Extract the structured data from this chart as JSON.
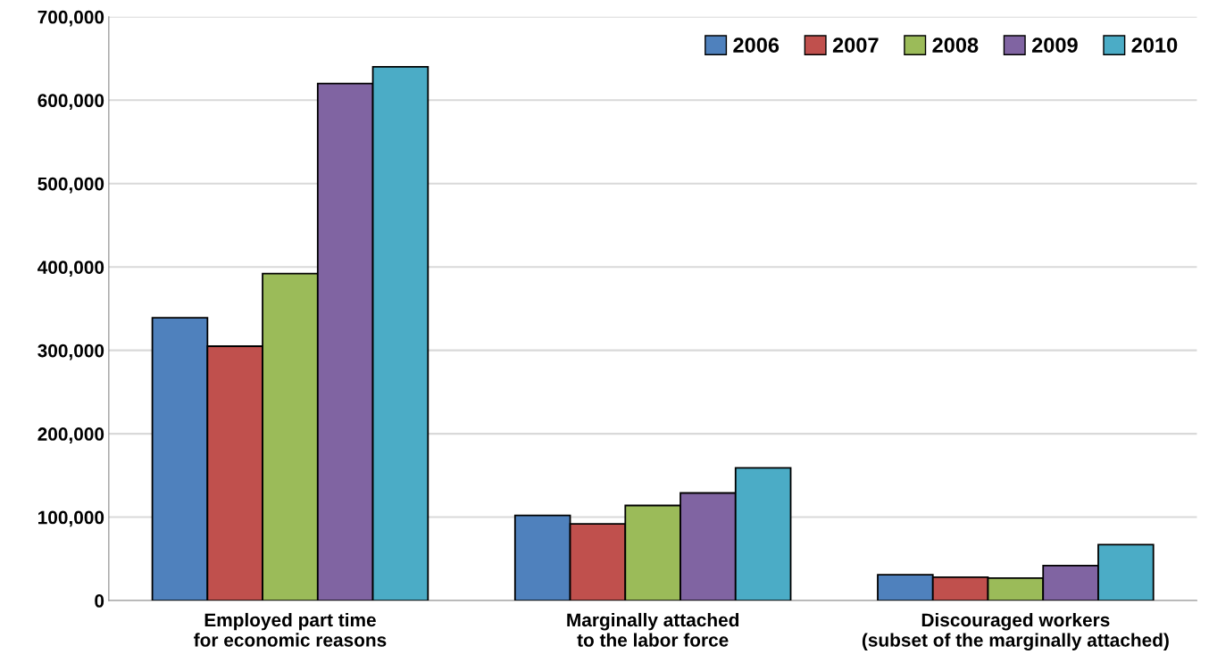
{
  "chart_data": {
    "type": "bar",
    "categories": [
      "Employed part time\nfor economic reasons",
      "Marginally attached\nto the labor force",
      "Discouraged workers\n(subset of the marginally attached)"
    ],
    "series": [
      {
        "name": "2006",
        "color": "#4f81bd",
        "values": [
          339000,
          102000,
          31000
        ]
      },
      {
        "name": "2007",
        "color": "#c0504d",
        "values": [
          305000,
          92000,
          28000
        ]
      },
      {
        "name": "2008",
        "color": "#9bbb59",
        "values": [
          392000,
          114000,
          27000
        ]
      },
      {
        "name": "2009",
        "color": "#8064a2",
        "values": [
          620000,
          129000,
          42000
        ]
      },
      {
        "name": "2010",
        "color": "#4bacc6",
        "values": [
          640000,
          159000,
          67000
        ]
      }
    ],
    "ylim": [
      0,
      700000
    ],
    "yticks": [
      {
        "value": 0,
        "label": "0"
      },
      {
        "value": 100000,
        "label": "100,000"
      },
      {
        "value": 200000,
        "label": "200,000"
      },
      {
        "value": 300000,
        "label": "300,000"
      },
      {
        "value": 400000,
        "label": "400,000"
      },
      {
        "value": 500000,
        "label": "500,000"
      },
      {
        "value": 600000,
        "label": "600,000"
      },
      {
        "value": 700000,
        "label": "700,000"
      }
    ],
    "grid": "y",
    "legend": "top right"
  }
}
